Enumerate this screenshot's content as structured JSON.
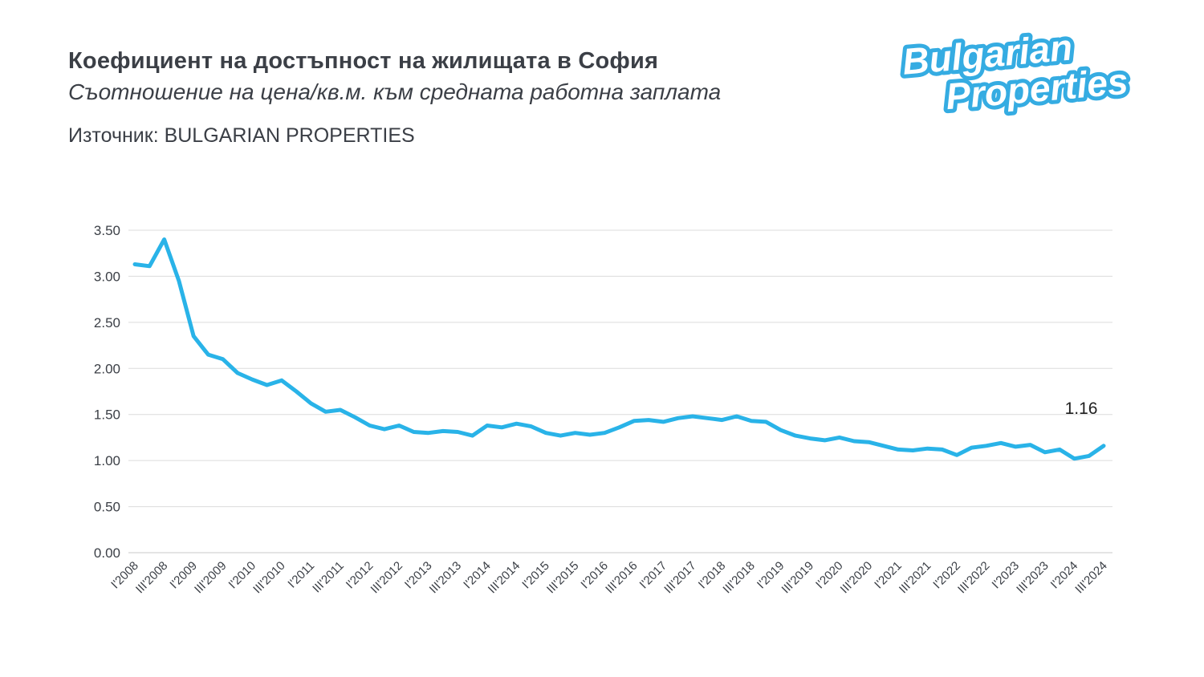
{
  "header": {
    "title": "Коефициент на достъпност на жилищата в София",
    "subtitle": "Съотношение на цена/кв.м. към средната работна заплата",
    "source": "Източник: BULGARIAN PROPERTIES"
  },
  "logo": {
    "line1": "Bulgarian",
    "line2": "Properties"
  },
  "colors": {
    "line": "#29b3e8",
    "logo_blue": "#35ace2",
    "grid": "#dcdcdc",
    "axis_text": "#3b3f46",
    "end_label_text": "#1f1f1f"
  },
  "chart_data": {
    "type": "line",
    "title": "Коефициент на достъпност на жилищата в София",
    "subtitle": "Съотношение на цена/кв.м. към средната работна заплата",
    "x_unit": "quarter",
    "x_tick_labels": [
      "I'2008",
      "III'2008",
      "I'2009",
      "III'2009",
      "I'2010",
      "III'2010",
      "I'2011",
      "III'2011",
      "I'2012",
      "III'2012",
      "I'2013",
      "III'2013",
      "I'2014",
      "III'2014",
      "I'2015",
      "III'2015",
      "I'2016",
      "III'2016",
      "I'2017",
      "III'2017",
      "I'2018",
      "III'2018",
      "I'2019",
      "III'2019",
      "I'2020",
      "III'2020",
      "I'2021",
      "III'2021",
      "I'2022",
      "III'2022",
      "I'2023",
      "III'2023",
      "I'2024",
      "III'2024"
    ],
    "values": [
      3.13,
      3.11,
      3.4,
      2.95,
      2.35,
      2.15,
      2.1,
      1.95,
      1.88,
      1.82,
      1.87,
      1.75,
      1.62,
      1.53,
      1.55,
      1.47,
      1.38,
      1.34,
      1.38,
      1.31,
      1.3,
      1.32,
      1.31,
      1.27,
      1.38,
      1.36,
      1.4,
      1.37,
      1.3,
      1.27,
      1.3,
      1.28,
      1.3,
      1.36,
      1.43,
      1.44,
      1.42,
      1.46,
      1.48,
      1.46,
      1.44,
      1.48,
      1.43,
      1.42,
      1.33,
      1.27,
      1.24,
      1.22,
      1.25,
      1.21,
      1.2,
      1.16,
      1.12,
      1.11,
      1.13,
      1.12,
      1.06,
      1.14,
      1.16,
      1.19,
      1.15,
      1.17,
      1.09,
      1.12,
      1.02,
      1.05,
      1.16
    ],
    "ylim": [
      0,
      3.5
    ],
    "y_tick_step": 0.5,
    "y_tick_labels": [
      "0.00",
      "0.50",
      "1.00",
      "1.50",
      "2.00",
      "2.50",
      "3.00",
      "3.50"
    ],
    "end_label": "1.16",
    "grid": "horizontal",
    "legend": "none"
  }
}
